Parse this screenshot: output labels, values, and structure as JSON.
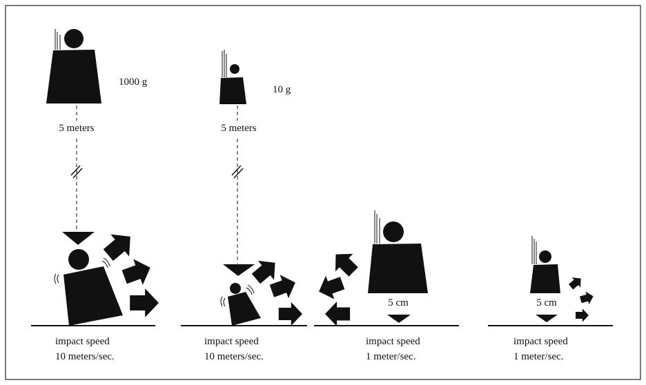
{
  "panels": [
    {
      "mass": "1000 g",
      "height": "5 meters",
      "impact_label": "impact speed",
      "speed": "10 meters/sec."
    },
    {
      "mass": "10 g",
      "height": "5 meters",
      "impact_label": "impact speed",
      "speed": "10 meters/sec."
    },
    {
      "drop": "5 cm",
      "impact_label": "impact speed",
      "speed": "1 meter/sec."
    },
    {
      "drop": "5 cm",
      "impact_label": "impact speed",
      "speed": "1 meter/sec."
    }
  ],
  "colors": {
    "ink": "#111111",
    "background": "#ffffff"
  }
}
